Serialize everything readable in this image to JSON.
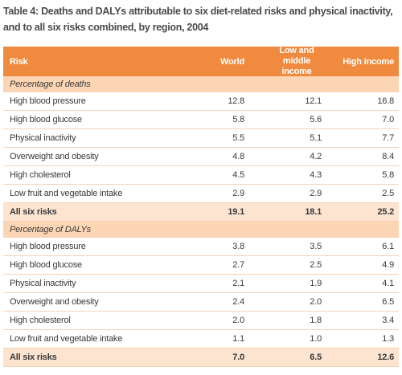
{
  "title_lines": [
    "Table 4: Deaths and DALYs attributable to six diet-related risks and physical inactivity,",
    "and to all six risks combined, by region, 2004"
  ],
  "table": {
    "header": [
      "Risk",
      "World",
      "Low and middle income",
      "High income"
    ],
    "sections": [
      {
        "label": "Percentage of deaths",
        "rows": [
          [
            "High blood pressure",
            "12.8",
            "12.1",
            "16.8"
          ],
          [
            "High blood glucose",
            "5.8",
            "5.6",
            "7.0"
          ],
          [
            "Physical inactivity",
            "5.5",
            "5.1",
            "7.7"
          ],
          [
            "Overweight and obesity",
            "4.8",
            "4.2",
            "8.4"
          ],
          [
            "High cholesterol",
            "4.5",
            "4.3",
            "5.8"
          ],
          [
            "Low fruit and vegetable intake",
            "2.9",
            "2.9",
            "2.5"
          ]
        ],
        "total": [
          "All six risks",
          "19.1",
          "18.1",
          "25.2"
        ]
      },
      {
        "label": "Percentage of DALYs",
        "rows": [
          [
            "High blood pressure",
            "3.8",
            "3.5",
            "6.1"
          ],
          [
            "High blood glucose",
            "2.7",
            "2.5",
            "4.9"
          ],
          [
            "Physical inactivity",
            "2.1",
            "1.9",
            "4.1"
          ],
          [
            "Overweight and obesity",
            "2.4",
            "2.0",
            "6.5"
          ],
          [
            "High cholesterol",
            "2.0",
            "1.8",
            "3.4"
          ],
          [
            "Low fruit and vegetable intake",
            "1.1",
            "1.0",
            "1.3"
          ]
        ],
        "total": [
          "All six risks",
          "7.0",
          "6.5",
          "12.6"
        ]
      }
    ]
  }
}
